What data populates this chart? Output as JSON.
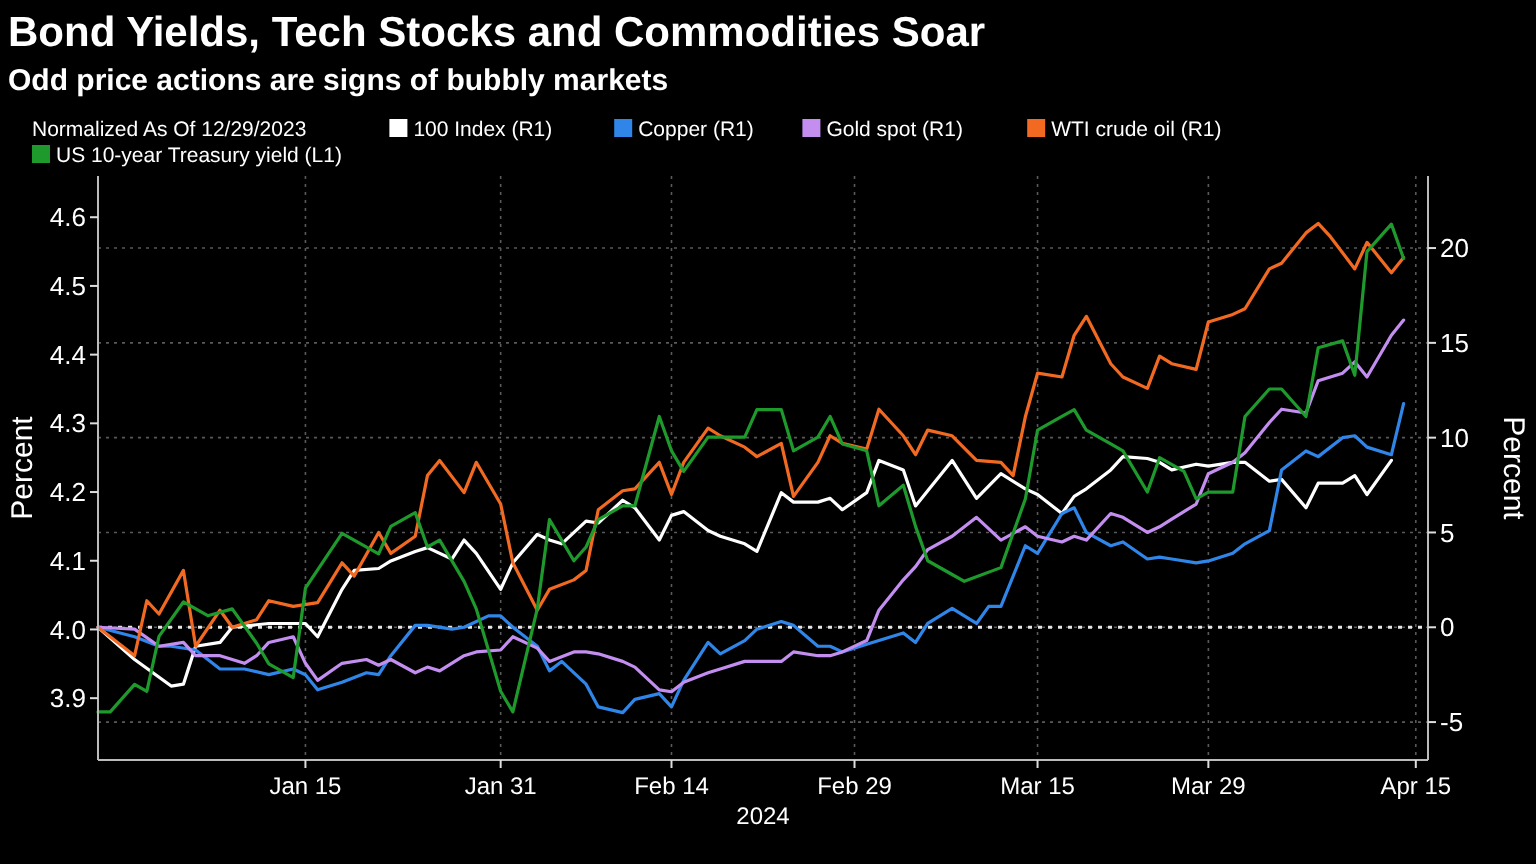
{
  "chart_data": {
    "type": "line",
    "title": "Bond Yields, Tech Stocks and Commodities Soar",
    "subtitle": "Odd price actions are signs of bubbly markets",
    "xlabel": "2024",
    "ylabel": "Percent",
    "y2label": "Percent",
    "legend_title": "Normalized As Of 12/29/2023",
    "legend": "top left",
    "grid": true,
    "xlim": [
      "2023-12-29",
      "2024-04-16"
    ],
    "xticks": [
      {
        "value": "2024-01-15",
        "label": "Jan 15"
      },
      {
        "value": "2024-01-31",
        "label": "Jan 31"
      },
      {
        "value": "2024-02-14",
        "label": "Feb 14"
      },
      {
        "value": "2024-02-29",
        "label": "Feb 29"
      },
      {
        "value": "2024-03-15",
        "label": "Mar 15"
      },
      {
        "value": "2024-03-29",
        "label": "Mar 29"
      },
      {
        "value": "2024-04-15",
        "label": "Apr 15"
      }
    ],
    "ylim": [
      3.81,
      4.66
    ],
    "yticks": [
      3.9,
      {
        "value": 4,
        "label": "4.0"
      },
      4.1,
      4.2,
      4.3,
      4.4,
      4.5,
      4.6
    ],
    "y2lim": [
      -7,
      23.8
    ],
    "y2ticks": [
      -5,
      0,
      5,
      10,
      15,
      20
    ],
    "ref_lines": [
      {
        "axis": "y2",
        "value": 0,
        "color": "#e6e6e6",
        "line_style": "dotted"
      }
    ],
    "series": [
      {
        "name": "100 Index (R1)",
        "color": "#ffffff",
        "axis": "y2",
        "x": [
          "2023-12-29",
          "2024-01-01",
          "2024-01-04",
          "2024-01-05",
          "2024-01-06",
          "2024-01-08",
          "2024-01-09",
          "2024-01-12",
          "2024-01-15",
          "2024-01-16",
          "2024-01-18",
          "2024-01-19",
          "2024-01-21",
          "2024-01-22",
          "2024-01-24",
          "2024-01-25",
          "2024-01-27",
          "2024-01-28",
          "2024-01-29",
          "2024-01-31",
          "2024-02-01",
          "2024-02-03",
          "2024-02-04",
          "2024-02-05",
          "2024-02-07",
          "2024-02-08",
          "2024-02-10",
          "2024-02-11",
          "2024-02-13",
          "2024-02-14",
          "2024-02-15",
          "2024-02-17",
          "2024-02-18",
          "2024-02-20",
          "2024-02-21",
          "2024-02-23",
          "2024-02-24",
          "2024-02-26",
          "2024-02-27",
          "2024-02-28",
          "2024-03-01",
          "2024-03-02",
          "2024-03-04",
          "2024-03-05",
          "2024-03-06",
          "2024-03-08",
          "2024-03-10",
          "2024-03-12",
          "2024-03-14",
          "2024-03-15",
          "2024-03-17",
          "2024-03-18",
          "2024-03-19",
          "2024-03-21",
          "2024-03-22",
          "2024-03-24",
          "2024-03-25",
          "2024-03-26",
          "2024-03-28",
          "2024-03-29",
          "2024-03-31",
          "2024-04-01",
          "2024-04-03",
          "2024-04-04",
          "2024-04-06",
          "2024-04-07",
          "2024-04-09",
          "2024-04-10",
          "2024-04-11",
          "2024-04-13"
        ],
        "values": [
          0,
          -1.7,
          -3.1,
          -3.0,
          -1.0,
          -0.8,
          0,
          0.2,
          0.2,
          -0.5,
          2.0,
          3.0,
          3.1,
          3.5,
          4.0,
          4.2,
          3.6,
          4.6,
          3.9,
          2.0,
          3.4,
          4.9,
          4.6,
          4.4,
          5.6,
          5.5,
          6.7,
          6.3,
          4.6,
          5.9,
          6.1,
          5.1,
          4.8,
          4.4,
          4.0,
          7.1,
          6.6,
          6.6,
          6.8,
          6.2,
          7.1,
          8.8,
          8.3,
          6.4,
          7.2,
          8.8,
          6.8,
          8.1,
          7.3,
          7.0,
          6.0,
          6.9,
          7.3,
          8.3,
          9.0,
          8.9,
          8.7,
          8.3,
          8.6,
          8.5,
          8.7,
          8.7,
          7.7,
          7.8,
          6.3,
          7.6,
          7.6,
          8.0,
          7.0,
          8.8
        ]
      },
      {
        "name": "Copper (R1)",
        "color": "#2f86e8",
        "axis": "y2",
        "x": [
          "2023-12-29",
          "2024-01-01",
          "2024-01-03",
          "2024-01-04",
          "2024-01-06",
          "2024-01-08",
          "2024-01-10",
          "2024-01-12",
          "2024-01-14",
          "2024-01-15",
          "2024-01-16",
          "2024-01-18",
          "2024-01-20",
          "2024-01-21",
          "2024-01-22",
          "2024-01-24",
          "2024-01-25",
          "2024-01-27",
          "2024-01-28",
          "2024-01-30",
          "2024-01-31",
          "2024-02-01",
          "2024-02-03",
          "2024-02-04",
          "2024-02-05",
          "2024-02-07",
          "2024-02-08",
          "2024-02-10",
          "2024-02-11",
          "2024-02-13",
          "2024-02-14",
          "2024-02-15",
          "2024-02-17",
          "2024-02-18",
          "2024-02-20",
          "2024-02-21",
          "2024-02-23",
          "2024-02-24",
          "2024-02-26",
          "2024-02-27",
          "2024-02-28",
          "2024-03-01",
          "2024-03-02",
          "2024-03-04",
          "2024-03-05",
          "2024-03-06",
          "2024-03-08",
          "2024-03-10",
          "2024-03-11",
          "2024-03-12",
          "2024-03-14",
          "2024-03-15",
          "2024-03-17",
          "2024-03-18",
          "2024-03-19",
          "2024-03-21",
          "2024-03-22",
          "2024-03-24",
          "2024-03-25",
          "2024-03-26",
          "2024-03-28",
          "2024-03-29",
          "2024-03-31",
          "2024-04-01",
          "2024-04-03",
          "2024-04-04",
          "2024-04-06",
          "2024-04-07",
          "2024-04-09",
          "2024-04-10",
          "2024-04-11",
          "2024-04-13",
          "2024-04-14"
        ],
        "values": [
          0,
          -0.5,
          -1.0,
          -1.0,
          -1.2,
          -2.2,
          -2.2,
          -2.5,
          -2.2,
          -2.5,
          -3.3,
          -2.9,
          -2.4,
          -2.5,
          -1.5,
          0.1,
          0.1,
          -0.1,
          0,
          0.6,
          0.6,
          0,
          -1.0,
          -2.3,
          -1.8,
          -3.0,
          -4.2,
          -4.5,
          -3.8,
          -3.5,
          -4.2,
          -2.8,
          -0.8,
          -1.4,
          -0.7,
          -0.1,
          0.3,
          0.1,
          -1.0,
          -1.0,
          -1.3,
          -0.9,
          -0.7,
          -0.3,
          -0.8,
          0.2,
          1.0,
          0.2,
          1.1,
          1.1,
          4.3,
          3.9,
          6.0,
          6.3,
          5.0,
          4.3,
          4.5,
          3.6,
          3.7,
          3.6,
          3.4,
          3.5,
          3.9,
          4.4,
          5.1,
          8.3,
          9.3,
          9.0,
          10.0,
          10.1,
          9.5,
          9.1,
          11.8
        ]
      },
      {
        "name": "Gold spot (R1)",
        "color": "#c38ef0",
        "axis": "y2",
        "x": [
          "2023-12-29",
          "2024-01-01",
          "2024-01-03",
          "2024-01-05",
          "2024-01-06",
          "2024-01-08",
          "2024-01-10",
          "2024-01-11",
          "2024-01-12",
          "2024-01-14",
          "2024-01-15",
          "2024-01-16",
          "2024-01-18",
          "2024-01-20",
          "2024-01-21",
          "2024-01-22",
          "2024-01-24",
          "2024-01-25",
          "2024-01-26",
          "2024-01-28",
          "2024-01-29",
          "2024-01-31",
          "2024-02-01",
          "2024-02-03",
          "2024-02-04",
          "2024-02-06",
          "2024-02-07",
          "2024-02-08",
          "2024-02-10",
          "2024-02-11",
          "2024-02-13",
          "2024-02-14",
          "2024-02-15",
          "2024-02-17",
          "2024-02-18",
          "2024-02-20",
          "2024-02-21",
          "2024-02-23",
          "2024-02-24",
          "2024-02-26",
          "2024-02-27",
          "2024-02-28",
          "2024-03-01",
          "2024-03-02",
          "2024-03-04",
          "2024-03-05",
          "2024-03-06",
          "2024-03-08",
          "2024-03-10",
          "2024-03-12",
          "2024-03-14",
          "2024-03-15",
          "2024-03-17",
          "2024-03-18",
          "2024-03-19",
          "2024-03-21",
          "2024-03-22",
          "2024-03-24",
          "2024-03-25",
          "2024-03-26",
          "2024-03-28",
          "2024-03-29",
          "2024-03-31",
          "2024-04-01",
          "2024-04-03",
          "2024-04-04",
          "2024-04-06",
          "2024-04-07",
          "2024-04-09",
          "2024-04-10",
          "2024-04-11",
          "2024-04-13",
          "2024-04-14"
        ],
        "values": [
          0,
          -0.1,
          -1.0,
          -0.8,
          -1.5,
          -1.5,
          -1.9,
          -1.5,
          -0.8,
          -0.5,
          -1.9,
          -2.8,
          -1.9,
          -1.7,
          -2.0,
          -1.7,
          -2.4,
          -2.1,
          -2.3,
          -1.5,
          -1.3,
          -1.2,
          -0.5,
          -1.1,
          -1.8,
          -1.3,
          -1.3,
          -1.4,
          -1.8,
          -2.1,
          -3.3,
          -3.4,
          -2.9,
          -2.4,
          -2.2,
          -1.8,
          -1.8,
          -1.8,
          -1.3,
          -1.5,
          -1.5,
          -1.3,
          -0.7,
          0.9,
          2.5,
          3.2,
          4.1,
          4.8,
          5.8,
          4.6,
          5.3,
          4.8,
          4.5,
          4.8,
          4.6,
          6.0,
          5.8,
          5.0,
          5.3,
          5.7,
          6.5,
          8.1,
          8.7,
          9.2,
          10.8,
          11.5,
          11.3,
          13.0,
          13.4,
          14.0,
          13.2,
          15.4,
          16.2
        ]
      },
      {
        "name": "WTI crude oil (R1)",
        "color": "#f26a21",
        "axis": "y2",
        "x": [
          "2023-12-29",
          "2024-01-01",
          "2024-01-02",
          "2024-01-03",
          "2024-01-05",
          "2024-01-06",
          "2024-01-08",
          "2024-01-09",
          "2024-01-11",
          "2024-01-12",
          "2024-01-14",
          "2024-01-16",
          "2024-01-18",
          "2024-01-19",
          "2024-01-21",
          "2024-01-22",
          "2024-01-24",
          "2024-01-25",
          "2024-01-26",
          "2024-01-28",
          "2024-01-29",
          "2024-01-31",
          "2024-02-01",
          "2024-02-03",
          "2024-02-04",
          "2024-02-06",
          "2024-02-07",
          "2024-02-08",
          "2024-02-10",
          "2024-02-11",
          "2024-02-13",
          "2024-02-14",
          "2024-02-15",
          "2024-02-17",
          "2024-02-18",
          "2024-02-20",
          "2024-02-21",
          "2024-02-23",
          "2024-02-24",
          "2024-02-26",
          "2024-02-27",
          "2024-02-28",
          "2024-03-01",
          "2024-03-02",
          "2024-03-04",
          "2024-03-05",
          "2024-03-06",
          "2024-03-08",
          "2024-03-10",
          "2024-03-12",
          "2024-03-13",
          "2024-03-14",
          "2024-03-15",
          "2024-03-17",
          "2024-03-18",
          "2024-03-19",
          "2024-03-21",
          "2024-03-22",
          "2024-03-24",
          "2024-03-25",
          "2024-03-26",
          "2024-03-28",
          "2024-03-29",
          "2024-03-31",
          "2024-04-01",
          "2024-04-03",
          "2024-04-04",
          "2024-04-06",
          "2024-04-07",
          "2024-04-08",
          "2024-04-10",
          "2024-04-11",
          "2024-04-13",
          "2024-04-14"
        ],
        "values": [
          0,
          -1.5,
          1.4,
          0.7,
          3.0,
          -1.0,
          0.9,
          0,
          0.4,
          1.4,
          1.1,
          1.3,
          3.4,
          2.7,
          5.0,
          3.9,
          4.8,
          8.0,
          8.8,
          7.1,
          8.7,
          6.5,
          3.4,
          0.9,
          2.0,
          2.5,
          3.0,
          6.2,
          7.2,
          7.3,
          8.7,
          7.0,
          8.7,
          10.5,
          10.1,
          9.5,
          9.0,
          9.7,
          6.9,
          8.7,
          10.1,
          9.7,
          9.4,
          11.5,
          10.1,
          9.1,
          10.4,
          10.1,
          8.8,
          8.7,
          8.0,
          11.1,
          13.4,
          13.2,
          15.4,
          16.4,
          13.9,
          13.2,
          12.6,
          14.3,
          13.9,
          13.6,
          16.1,
          16.5,
          16.8,
          18.9,
          19.2,
          20.8,
          21.3,
          20.6,
          18.9,
          20.3,
          18.7,
          19.5
        ]
      },
      {
        "name": "US 10-year Treasury yield (L1)",
        "color": "#1e9a2c",
        "axis": "y",
        "x": [
          "2023-12-29",
          "2023-12-30",
          "2024-01-01",
          "2024-01-02",
          "2024-01-03",
          "2024-01-05",
          "2024-01-07",
          "2024-01-09",
          "2024-01-11",
          "2024-01-12",
          "2024-01-14",
          "2024-01-15",
          "2024-01-18",
          "2024-01-21",
          "2024-01-22",
          "2024-01-24",
          "2024-01-25",
          "2024-01-26",
          "2024-01-28",
          "2024-01-29",
          "2024-01-31",
          "2024-02-01",
          "2024-02-03",
          "2024-02-04",
          "2024-02-06",
          "2024-02-07",
          "2024-02-08",
          "2024-02-10",
          "2024-02-11",
          "2024-02-13",
          "2024-02-14",
          "2024-02-15",
          "2024-02-17",
          "2024-02-18",
          "2024-02-20",
          "2024-02-21",
          "2024-02-23",
          "2024-02-24",
          "2024-02-26",
          "2024-02-27",
          "2024-02-28",
          "2024-03-01",
          "2024-03-02",
          "2024-03-04",
          "2024-03-05",
          "2024-03-06",
          "2024-03-08",
          "2024-03-09",
          "2024-03-12",
          "2024-03-14",
          "2024-03-15",
          "2024-03-17",
          "2024-03-18",
          "2024-03-19",
          "2024-03-21",
          "2024-03-22",
          "2024-03-24",
          "2024-03-25",
          "2024-03-27",
          "2024-03-28",
          "2024-03-29",
          "2024-03-31",
          "2024-04-01",
          "2024-04-03",
          "2024-04-04",
          "2024-04-06",
          "2024-04-07",
          "2024-04-09",
          "2024-04-10",
          "2024-04-11",
          "2024-04-13",
          "2024-04-14"
        ],
        "values": [
          3.88,
          3.88,
          3.92,
          3.91,
          3.99,
          4.04,
          4.02,
          4.03,
          3.98,
          3.95,
          3.93,
          4.06,
          4.14,
          4.11,
          4.15,
          4.17,
          4.12,
          4.13,
          4.07,
          4.03,
          3.91,
          3.88,
          4.03,
          4.16,
          4.1,
          4.12,
          4.16,
          4.18,
          4.18,
          4.31,
          4.26,
          4.23,
          4.28,
          4.28,
          4.28,
          4.32,
          4.32,
          4.26,
          4.28,
          4.31,
          4.27,
          4.26,
          4.18,
          4.21,
          4.15,
          4.1,
          4.08,
          4.07,
          4.09,
          4.19,
          4.29,
          4.31,
          4.32,
          4.29,
          4.27,
          4.26,
          4.2,
          4.25,
          4.23,
          4.19,
          4.2,
          4.2,
          4.31,
          4.35,
          4.35,
          4.31,
          4.41,
          4.42,
          4.37,
          4.55,
          4.59,
          4.54
        ]
      }
    ]
  }
}
